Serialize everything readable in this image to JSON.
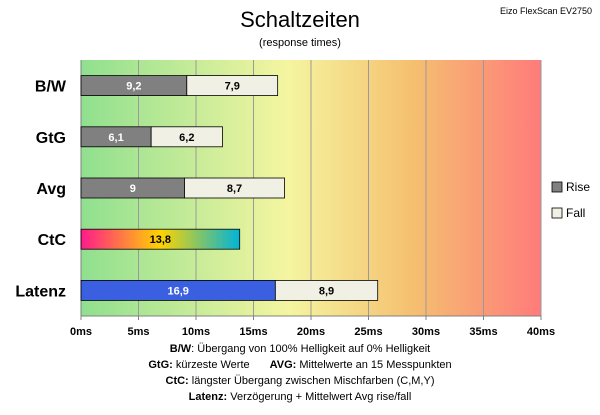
{
  "chart_data": {
    "type": "bar",
    "orientation": "horizontal",
    "stacked": true,
    "title": "Schaltzeiten",
    "subtitle": "(response times)",
    "corner_label": "Eizo FlexScan EV2750",
    "categories": [
      "B/W",
      "GtG",
      "Avg",
      "CtC",
      "Latenz"
    ],
    "series": [
      {
        "name": "Rise",
        "values": [
          9.2,
          6.1,
          9,
          13.8,
          16.9
        ],
        "labels": [
          "9,2",
          "6,1",
          "9",
          "13,8",
          "16,9"
        ]
      },
      {
        "name": "Fall",
        "values": [
          7.9,
          6.2,
          8.7,
          null,
          8.9
        ],
        "labels": [
          "7,9",
          "6,2",
          "8,7",
          "",
          "8,9"
        ]
      }
    ],
    "xlim": [
      0,
      40
    ],
    "xticks": [
      0,
      5,
      10,
      15,
      20,
      25,
      30,
      35,
      40
    ],
    "xtick_labels": [
      "0ms",
      "5ms",
      "10ms",
      "15ms",
      "20ms",
      "25ms",
      "30ms",
      "35ms",
      "40ms"
    ],
    "grid": "vertical",
    "legend_placement": "right",
    "background_gradient": [
      "#8fe08f",
      "#f5f5a0",
      "#f5c070",
      "#ff7b7b"
    ],
    "colors": {
      "rise": "#808080",
      "fall": "#f0f0e4",
      "latenz_rise": "#3a5fe0",
      "ctc_gradient": [
        "#ff1a8c",
        "#ffd300",
        "#00b4d8"
      ]
    }
  },
  "notes": [
    {
      "bold": "B/W",
      "text": ":  Übergang von 100% Helligkeit auf 0% Helligkeit"
    },
    {
      "bold": "GtG:",
      "text": " kürzeste  Werte",
      "bold2": "AVG:",
      "text2": " Mittelwerte  an 15 Messpunkten"
    },
    {
      "bold": "CtC:",
      "text": " längster Übergang  zwischen Mischfarben (C,M,Y)"
    },
    {
      "bold": "Latenz:",
      "text": " Verzögerung  + Mittelwert Avg rise/fall"
    }
  ]
}
